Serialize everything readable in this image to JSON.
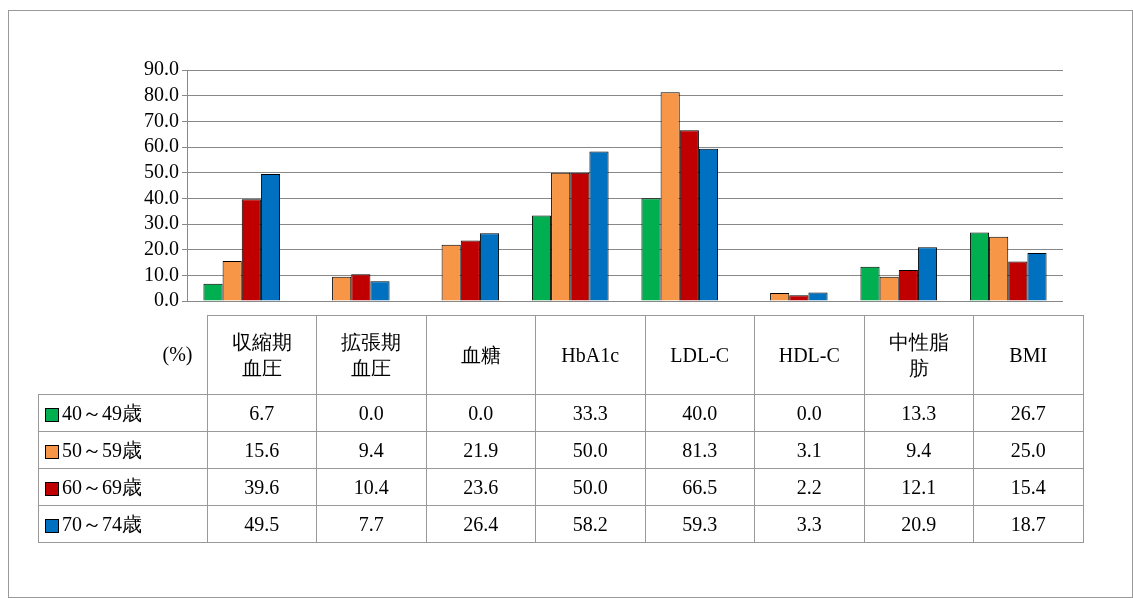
{
  "chart_data": {
    "type": "bar",
    "ylabel": "(%)",
    "categories": [
      "収縮期血圧",
      "拡張期血圧",
      "血糖",
      "HbA1c",
      "LDL-C",
      "HDL-C",
      "中性脂肪",
      "BMI"
    ],
    "series": [
      {
        "name": "40～49歳",
        "color": "#00b050",
        "values": [
          6.7,
          0.0,
          0.0,
          33.3,
          40.0,
          0.0,
          13.3,
          26.7
        ],
        "value_labels": [
          "6.7",
          "0.0",
          "0.0",
          "33.3",
          "40.0",
          "0.0",
          "13.3",
          "26.7"
        ]
      },
      {
        "name": "50～59歳",
        "color": "#f79646",
        "values": [
          15.6,
          9.4,
          21.9,
          50.0,
          81.3,
          3.1,
          9.4,
          25.0
        ],
        "value_labels": [
          "15.6",
          "9.4",
          "21.9",
          "50.0",
          "81.3",
          "3.1",
          "9.4",
          "25.0"
        ]
      },
      {
        "name": "60～69歳",
        "color": "#c00000",
        "values": [
          39.6,
          10.4,
          23.6,
          50.0,
          66.5,
          2.2,
          12.1,
          15.4
        ],
        "value_labels": [
          "39.6",
          "10.4",
          "23.6",
          "50.0",
          "66.5",
          "2.2",
          "12.1",
          "15.4"
        ]
      },
      {
        "name": "70～74歳",
        "color": "#0070c0",
        "values": [
          49.5,
          7.7,
          26.4,
          58.2,
          59.3,
          3.3,
          20.9,
          18.7
        ],
        "value_labels": [
          "49.5",
          "7.7",
          "26.4",
          "58.2",
          "59.3",
          "3.3",
          "20.9",
          "18.7"
        ]
      }
    ],
    "ylim": [
      0,
      90
    ],
    "yticks": [
      {
        "value": 0,
        "label": "0.0"
      },
      {
        "value": 10,
        "label": "10.0"
      },
      {
        "value": 20,
        "label": "20.0"
      },
      {
        "value": 30,
        "label": "30.0"
      },
      {
        "value": 40,
        "label": "40.0"
      },
      {
        "value": 50,
        "label": "50.0"
      },
      {
        "value": 60,
        "label": "60.0"
      },
      {
        "value": 70,
        "label": "70.0"
      },
      {
        "value": 80,
        "label": "80.0"
      },
      {
        "value": 90,
        "label": "90.0"
      }
    ],
    "grid": "y",
    "legend": "bottom left"
  }
}
